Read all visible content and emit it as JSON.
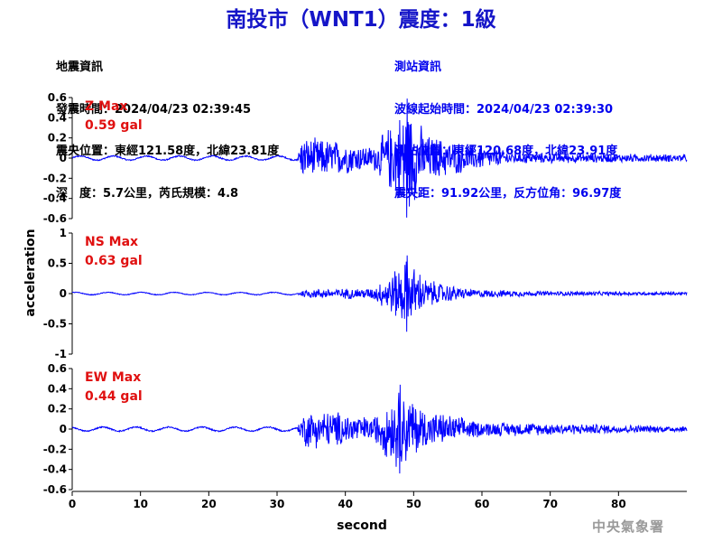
{
  "title": "南投市（WNT1）震度：1級",
  "quake_info": {
    "heading": "地震資訊",
    "origin_time": "發震時間：2024/04/23 02:39:45",
    "epicenter": "震央位置：東經121.58度，北緯23.81度",
    "depth_magnitude": "深　度：5.7公里，芮氏規模：4.8"
  },
  "station_info": {
    "heading": "測站資訊",
    "wave_start": "波線起始時間：2024/04/23 02:39:30",
    "station_location": "測站位置：東經120.68度，北緯23.91度",
    "distance_azimuth": "震央距：91.92公里，反方位角：96.97度"
  },
  "watermark": "中央氣象署",
  "chart_data": {
    "type": "line",
    "xlabel": "second",
    "ylabel": "acceleration",
    "xlim": [
      0,
      90
    ],
    "x_ticks": [
      0,
      10,
      20,
      30,
      40,
      50,
      60,
      70,
      80
    ],
    "line_color": "#0000ff",
    "max_label_color": "#e01010",
    "panels": [
      {
        "name": "Z",
        "max_label": "Z Max",
        "max_value_label": "0.59 gal",
        "max_value": 0.59,
        "ylim": [
          -0.6,
          0.6
        ],
        "y_ticks": [
          -0.6,
          -0.4,
          -0.2,
          0,
          0.2,
          0.4,
          0.6
        ],
        "y_tick_labels": [
          "-0.6",
          "-0.4",
          "-0.2",
          "0",
          "0.2",
          "0.4",
          "0.6"
        ],
        "approx_envelope": [
          {
            "t": 0,
            "amp": 0.02
          },
          {
            "t": 33,
            "amp": 0.02
          },
          {
            "t": 33.5,
            "amp": 0.22
          },
          {
            "t": 38,
            "amp": 0.2
          },
          {
            "t": 44,
            "amp": 0.12
          },
          {
            "t": 46,
            "amp": 0.3
          },
          {
            "t": 49,
            "amp": 0.59
          },
          {
            "t": 52,
            "amp": 0.25
          },
          {
            "t": 58,
            "amp": 0.15
          },
          {
            "t": 65,
            "amp": 0.06
          },
          {
            "t": 90,
            "amp": 0.04
          }
        ]
      },
      {
        "name": "NS",
        "max_label": "NS Max",
        "max_value_label": "0.63 gal",
        "max_value": 0.63,
        "ylim": [
          -1,
          1
        ],
        "y_ticks": [
          -1,
          -0.5,
          0,
          0.5,
          1
        ],
        "y_tick_labels": [
          "-1",
          "-0.5",
          "0",
          "0.5",
          "1"
        ],
        "approx_envelope": [
          {
            "t": 0,
            "amp": 0.02
          },
          {
            "t": 33,
            "amp": 0.02
          },
          {
            "t": 34,
            "amp": 0.08
          },
          {
            "t": 44,
            "amp": 0.1
          },
          {
            "t": 46,
            "amp": 0.3
          },
          {
            "t": 49,
            "amp": 0.63
          },
          {
            "t": 52,
            "amp": 0.25
          },
          {
            "t": 58,
            "amp": 0.08
          },
          {
            "t": 70,
            "amp": 0.04
          },
          {
            "t": 90,
            "amp": 0.03
          }
        ]
      },
      {
        "name": "EW",
        "max_label": "EW Max",
        "max_value_label": "0.44 gal",
        "max_value": 0.44,
        "ylim": [
          -0.6,
          0.6
        ],
        "y_ticks": [
          -0.6,
          -0.4,
          -0.2,
          0,
          0.2,
          0.4,
          0.6
        ],
        "y_tick_labels": [
          "-0.6",
          "-0.4",
          "-0.2",
          "0",
          "0.2",
          "0.4",
          "0.6"
        ],
        "approx_envelope": [
          {
            "t": 0,
            "amp": 0.02
          },
          {
            "t": 33,
            "amp": 0.02
          },
          {
            "t": 34,
            "amp": 0.2
          },
          {
            "t": 38,
            "amp": 0.2
          },
          {
            "t": 44,
            "amp": 0.12
          },
          {
            "t": 46,
            "amp": 0.3
          },
          {
            "t": 48,
            "amp": 0.44
          },
          {
            "t": 52,
            "amp": 0.2
          },
          {
            "t": 60,
            "amp": 0.08
          },
          {
            "t": 90,
            "amp": 0.03
          }
        ]
      }
    ]
  }
}
